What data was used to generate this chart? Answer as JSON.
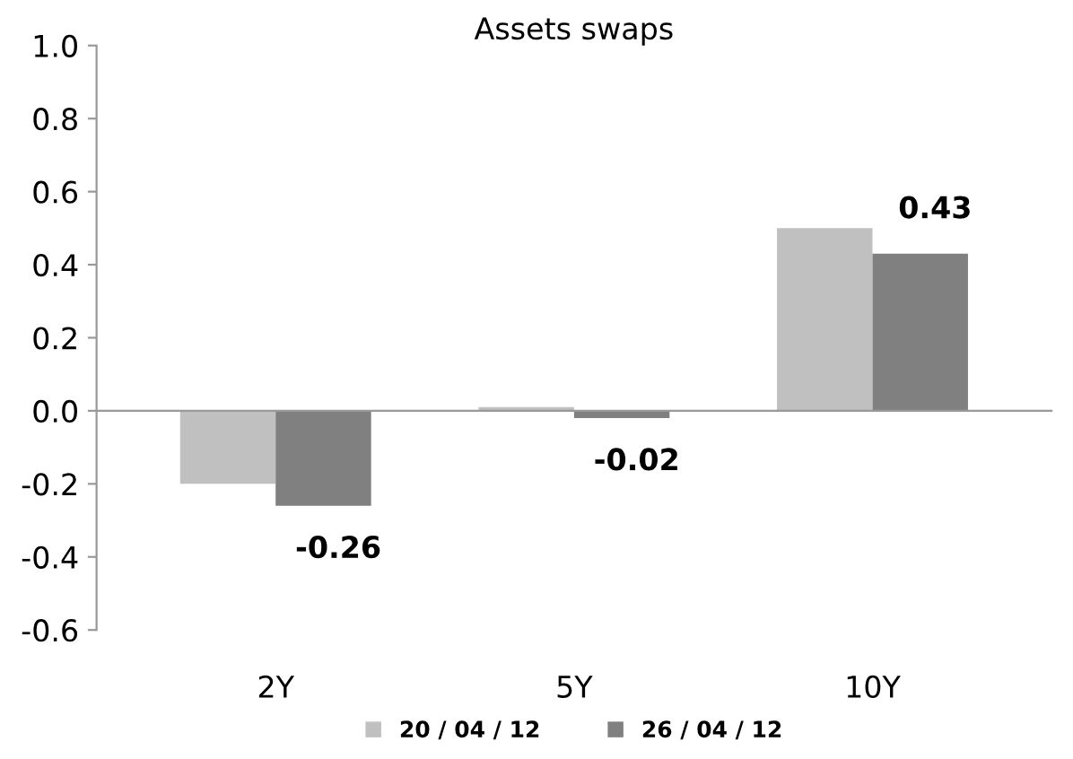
{
  "chart_data": {
    "type": "bar",
    "title": "Assets swaps",
    "categories": [
      "2Y",
      "5Y",
      "10Y"
    ],
    "series": [
      {
        "name": "20 / 04 / 12",
        "color": "#c0c0c0",
        "values": [
          -0.2,
          0.01,
          0.5
        ]
      },
      {
        "name": "26 / 04 / 12",
        "color": "#808080",
        "values": [
          -0.26,
          -0.02,
          0.43
        ],
        "value_labels": [
          "-0.26",
          "-0.02",
          "0.43"
        ]
      }
    ],
    "ylim": [
      -0.6,
      1.0
    ],
    "yticks": [
      {
        "value": -0.6,
        "label": "-0.6"
      },
      {
        "value": -0.4,
        "label": "-0.4"
      },
      {
        "value": -0.2,
        "label": "-0.2"
      },
      {
        "value": 0,
        "label": "0.0"
      },
      {
        "value": 0.2,
        "label": "0.2"
      },
      {
        "value": 0.4,
        "label": "0.4"
      },
      {
        "value": 0.6,
        "label": "0.6"
      },
      {
        "value": 0.8,
        "label": "0.8"
      },
      {
        "value": 1.0,
        "label": "1.0"
      }
    ],
    "legend": "bottom"
  }
}
